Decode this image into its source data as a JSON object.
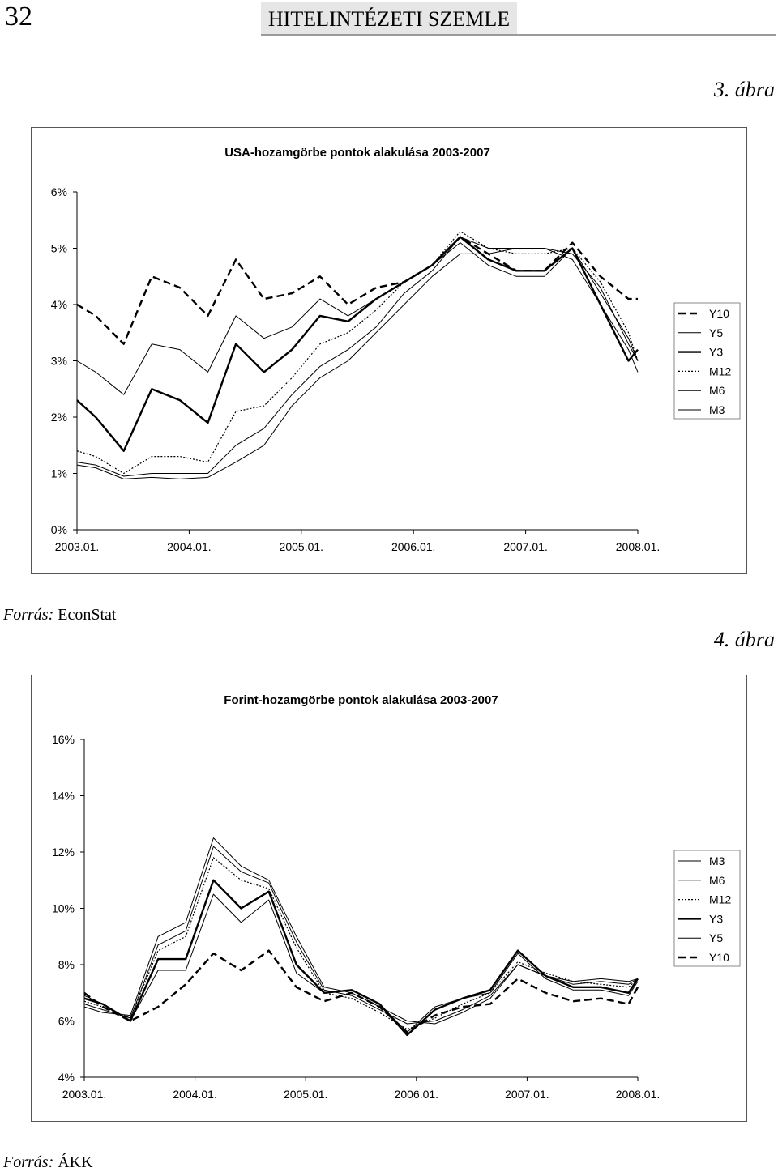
{
  "header": {
    "page_number": "32",
    "journal_title": "HITELINTÉZETI SZEMLE"
  },
  "figures": [
    {
      "label": "3. ábra",
      "source_prefix": "Forrás:",
      "source_name": "EconStat",
      "chart_data": {
        "type": "line",
        "title": "USA-hozamgörbe pontok alakulása 2003-2007",
        "xlabel": "",
        "ylabel": "",
        "x_ticks": [
          "2003.01.",
          "2004.01.",
          "2005.01.",
          "2006.01.",
          "2007.01.",
          "2008.01."
        ],
        "y_ticks": [
          "0%",
          "1%",
          "2%",
          "3%",
          "4%",
          "5%",
          "6%"
        ],
        "ylim": [
          0,
          6
        ],
        "x_range": [
          "2003.01.",
          "2008.01."
        ],
        "legend": [
          "Y10",
          "Y5",
          "Y3",
          "M12",
          "M6",
          "M3"
        ],
        "legend_position": "right",
        "series": [
          {
            "name": "Y10",
            "style": "dashed-thick",
            "x": [
              "2003.01.",
              "2003.03.",
              "2003.06.",
              "2003.09.",
              "2003.12.",
              "2004.03.",
              "2004.06.",
              "2004.09.",
              "2004.12.",
              "2005.03.",
              "2005.06.",
              "2005.09.",
              "2005.12.",
              "2006.03.",
              "2006.06.",
              "2006.09.",
              "2006.12.",
              "2007.03.",
              "2007.06.",
              "2007.09.",
              "2007.12.",
              "2008.01."
            ],
            "values": [
              4.0,
              3.8,
              3.3,
              4.5,
              4.3,
              3.8,
              4.8,
              4.1,
              4.2,
              4.5,
              4.0,
              4.3,
              4.4,
              4.7,
              5.2,
              4.9,
              4.6,
              4.6,
              5.1,
              4.5,
              4.1,
              4.1
            ]
          },
          {
            "name": "Y5",
            "style": "solid-thin",
            "x": [
              "2003.01.",
              "2003.03.",
              "2003.06.",
              "2003.09.",
              "2003.12.",
              "2004.03.",
              "2004.06.",
              "2004.09.",
              "2004.12.",
              "2005.03.",
              "2005.06.",
              "2005.09.",
              "2005.12.",
              "2006.03.",
              "2006.06.",
              "2006.09.",
              "2006.12.",
              "2007.03.",
              "2007.06.",
              "2007.09.",
              "2007.12.",
              "2008.01."
            ],
            "values": [
              3.0,
              2.8,
              2.4,
              3.3,
              3.2,
              2.8,
              3.8,
              3.4,
              3.6,
              4.1,
              3.8,
              4.1,
              4.4,
              4.7,
              5.1,
              4.7,
              4.5,
              4.5,
              5.0,
              4.2,
              3.4,
              3.0
            ]
          },
          {
            "name": "Y3",
            "style": "solid-thick",
            "x": [
              "2003.01.",
              "2003.03.",
              "2003.06.",
              "2003.09.",
              "2003.12.",
              "2004.03.",
              "2004.06.",
              "2004.09.",
              "2004.12.",
              "2005.03.",
              "2005.06.",
              "2005.09.",
              "2005.12.",
              "2006.03.",
              "2006.06.",
              "2006.09.",
              "2006.12.",
              "2007.03.",
              "2007.06.",
              "2007.09.",
              "2007.12.",
              "2008.01."
            ],
            "values": [
              2.3,
              2.0,
              1.4,
              2.5,
              2.3,
              1.9,
              3.3,
              2.8,
              3.2,
              3.8,
              3.7,
              4.1,
              4.4,
              4.7,
              5.2,
              4.8,
              4.6,
              4.6,
              5.0,
              4.0,
              3.0,
              3.2
            ]
          },
          {
            "name": "M12",
            "style": "dotted",
            "x": [
              "2003.01.",
              "2003.03.",
              "2003.06.",
              "2003.09.",
              "2003.12.",
              "2004.03.",
              "2004.06.",
              "2004.09.",
              "2004.12.",
              "2005.03.",
              "2005.06.",
              "2005.09.",
              "2005.12.",
              "2006.03.",
              "2006.06.",
              "2006.09.",
              "2006.12.",
              "2007.03.",
              "2007.06.",
              "2007.09.",
              "2007.12.",
              "2008.01."
            ],
            "values": [
              1.4,
              1.3,
              1.0,
              1.3,
              1.3,
              1.2,
              2.1,
              2.2,
              2.7,
              3.3,
              3.5,
              3.9,
              4.4,
              4.7,
              5.3,
              5.0,
              4.9,
              4.9,
              5.0,
              4.4,
              3.5,
              3.0
            ]
          },
          {
            "name": "M6",
            "style": "solid-thin",
            "x": [
              "2003.01.",
              "2003.03.",
              "2003.06.",
              "2003.09.",
              "2003.12.",
              "2004.03.",
              "2004.06.",
              "2004.09.",
              "2004.12.",
              "2005.03.",
              "2005.06.",
              "2005.09.",
              "2005.12.",
              "2006.03.",
              "2006.06.",
              "2006.09.",
              "2006.12.",
              "2007.03.",
              "2007.06.",
              "2007.09.",
              "2007.12.",
              "2008.01."
            ],
            "values": [
              1.2,
              1.15,
              0.95,
              1.0,
              1.0,
              1.0,
              1.5,
              1.8,
              2.4,
              2.9,
              3.2,
              3.6,
              4.2,
              4.6,
              5.2,
              5.0,
              5.0,
              5.0,
              4.9,
              4.3,
              3.3,
              3.0
            ]
          },
          {
            "name": "M3",
            "style": "solid-thin",
            "x": [
              "2003.01.",
              "2003.03.",
              "2003.06.",
              "2003.09.",
              "2003.12.",
              "2004.03.",
              "2004.06.",
              "2004.09.",
              "2004.12.",
              "2005.03.",
              "2005.06.",
              "2005.09.",
              "2005.12.",
              "2006.03.",
              "2006.06.",
              "2006.09.",
              "2006.12.",
              "2007.03.",
              "2007.06.",
              "2007.09.",
              "2007.12.",
              "2008.01."
            ],
            "values": [
              1.15,
              1.1,
              0.9,
              0.93,
              0.9,
              0.93,
              1.2,
              1.5,
              2.2,
              2.7,
              3.0,
              3.5,
              4.0,
              4.5,
              4.9,
              4.9,
              5.0,
              5.0,
              4.8,
              4.0,
              3.2,
              2.8
            ]
          }
        ]
      }
    },
    {
      "label": "4. ábra",
      "source_prefix": "Forrás:",
      "source_name": "ÁKK",
      "chart_data": {
        "type": "line",
        "title": "Forint-hozamgörbe pontok alakulása 2003-2007",
        "xlabel": "",
        "ylabel": "",
        "x_ticks": [
          "2003.01.",
          "2004.01.",
          "2005.01.",
          "2006.01.",
          "2007.01.",
          "2008.01."
        ],
        "y_ticks": [
          "4%",
          "6%",
          "8%",
          "10%",
          "12%",
          "14%",
          "16%"
        ],
        "ylim": [
          4,
          16
        ],
        "x_range": [
          "2003.01.",
          "2008.01."
        ],
        "legend": [
          "M3",
          "M6",
          "M12",
          "Y3",
          "Y5",
          "Y10"
        ],
        "legend_position": "right",
        "series": [
          {
            "name": "M3",
            "style": "solid-thin",
            "x": [
              "2003.01.",
              "2003.03.",
              "2003.06.",
              "2003.09.",
              "2003.12.",
              "2004.03.",
              "2004.06.",
              "2004.09.",
              "2004.12.",
              "2005.03.",
              "2005.06.",
              "2005.09.",
              "2005.12.",
              "2006.03.",
              "2006.06.",
              "2006.09.",
              "2006.12.",
              "2007.03.",
              "2007.06.",
              "2007.09.",
              "2007.12.",
              "2008.01."
            ],
            "values": [
              6.5,
              6.3,
              6.2,
              9.0,
              9.5,
              12.5,
              11.5,
              11.0,
              9.0,
              7.2,
              7.0,
              6.5,
              6.0,
              5.9,
              6.3,
              6.8,
              8.0,
              7.6,
              7.4,
              7.5,
              7.4,
              7.5
            ]
          },
          {
            "name": "M6",
            "style": "solid-thin",
            "x": [
              "2003.01.",
              "2003.03.",
              "2003.06.",
              "2003.09.",
              "2003.12.",
              "2004.03.",
              "2004.06.",
              "2004.09.",
              "2004.12.",
              "2005.03.",
              "2005.06.",
              "2005.09.",
              "2005.12.",
              "2006.03.",
              "2006.06.",
              "2006.09.",
              "2006.12.",
              "2007.03.",
              "2007.06.",
              "2007.09.",
              "2007.12.",
              "2008.01."
            ],
            "values": [
              6.6,
              6.4,
              6.1,
              8.7,
              9.2,
              12.2,
              11.3,
              10.9,
              8.8,
              7.1,
              6.9,
              6.4,
              5.9,
              6.0,
              6.4,
              6.9,
              8.0,
              7.6,
              7.3,
              7.4,
              7.3,
              7.5
            ]
          },
          {
            "name": "M12",
            "style": "dotted",
            "x": [
              "2003.01.",
              "2003.03.",
              "2003.06.",
              "2003.09.",
              "2003.12.",
              "2004.03.",
              "2004.06.",
              "2004.09.",
              "2004.12.",
              "2005.03.",
              "2005.06.",
              "2005.09.",
              "2005.12.",
              "2006.03.",
              "2006.06.",
              "2006.09.",
              "2006.12.",
              "2007.03.",
              "2007.06.",
              "2007.09.",
              "2007.12.",
              "2008.01."
            ],
            "values": [
              6.7,
              6.5,
              6.1,
              8.5,
              9.0,
              11.8,
              11.0,
              10.7,
              8.6,
              7.0,
              6.8,
              6.3,
              5.7,
              6.1,
              6.6,
              7.0,
              8.1,
              7.7,
              7.4,
              7.3,
              7.2,
              7.5
            ]
          },
          {
            "name": "Y3",
            "style": "solid-thick",
            "x": [
              "2003.01.",
              "2003.03.",
              "2003.06.",
              "2003.09.",
              "2003.12.",
              "2004.03.",
              "2004.06.",
              "2004.09.",
              "2004.12.",
              "2005.03.",
              "2005.06.",
              "2005.09.",
              "2005.12.",
              "2006.03.",
              "2006.06.",
              "2006.09.",
              "2006.12.",
              "2007.03.",
              "2007.06.",
              "2007.09.",
              "2007.12.",
              "2008.01."
            ],
            "values": [
              6.8,
              6.6,
              6.0,
              8.2,
              8.2,
              11.0,
              10.0,
              10.6,
              8.0,
              7.0,
              7.1,
              6.6,
              5.5,
              6.4,
              6.8,
              7.1,
              8.5,
              7.6,
              7.2,
              7.2,
              7.0,
              7.5
            ]
          },
          {
            "name": "Y5",
            "style": "solid-thin",
            "x": [
              "2003.01.",
              "2003.03.",
              "2003.06.",
              "2003.09.",
              "2003.12.",
              "2004.03.",
              "2004.06.",
              "2004.09.",
              "2004.12.",
              "2005.03.",
              "2005.06.",
              "2005.09.",
              "2005.12.",
              "2006.03.",
              "2006.06.",
              "2006.09.",
              "2006.12.",
              "2007.03.",
              "2007.06.",
              "2007.09.",
              "2007.12.",
              "2008.01."
            ],
            "values": [
              6.9,
              6.6,
              6.0,
              7.8,
              7.8,
              10.5,
              9.5,
              10.3,
              7.7,
              7.0,
              7.1,
              6.6,
              5.6,
              6.5,
              6.8,
              7.0,
              8.4,
              7.5,
              7.1,
              7.1,
              6.9,
              7.4
            ]
          },
          {
            "name": "Y10",
            "style": "dashed-thick",
            "x": [
              "2003.01.",
              "2003.03.",
              "2003.06.",
              "2003.09.",
              "2003.12.",
              "2004.03.",
              "2004.06.",
              "2004.09.",
              "2004.12.",
              "2005.03.",
              "2005.06.",
              "2005.09.",
              "2005.12.",
              "2006.03.",
              "2006.06.",
              "2006.09.",
              "2006.12.",
              "2007.03.",
              "2007.06.",
              "2007.09.",
              "2007.12.",
              "2008.01."
            ],
            "values": [
              7.0,
              6.5,
              6.0,
              6.5,
              7.3,
              8.4,
              7.8,
              8.5,
              7.2,
              6.7,
              7.0,
              6.5,
              5.6,
              6.2,
              6.5,
              6.6,
              7.5,
              7.0,
              6.7,
              6.8,
              6.6,
              7.2
            ]
          }
        ]
      }
    }
  ]
}
